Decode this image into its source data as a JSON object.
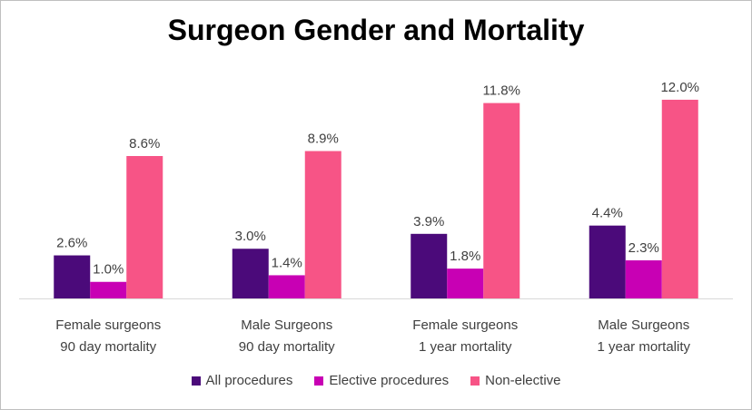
{
  "chart_data": {
    "type": "bar",
    "title": "Surgeon Gender and Mortality",
    "categories": [
      [
        "Female surgeons",
        "90 day mortality"
      ],
      [
        "Male Surgeons",
        "90 day mortality"
      ],
      [
        "Female surgeons",
        "1 year mortality"
      ],
      [
        "Male Surgeons",
        "1 year mortality"
      ]
    ],
    "series": [
      {
        "name": "All procedures",
        "color": "#4b0a7a",
        "values": [
          2.6,
          3.0,
          3.9,
          4.4
        ],
        "labels": [
          "2.6%",
          "3.0%",
          "3.9%",
          "4.4%"
        ]
      },
      {
        "name": "Elective procedures",
        "color": "#c800b4",
        "values": [
          1.0,
          1.4,
          1.8,
          2.3
        ],
        "labels": [
          "1.0%",
          "1.4%",
          "1.8%",
          "2.3%"
        ]
      },
      {
        "name": "Non-elective",
        "color": "#f75486",
        "values": [
          8.6,
          8.9,
          11.8,
          12.0
        ],
        "labels": [
          "8.6%",
          "8.9%",
          "11.8%",
          "12.0%"
        ]
      }
    ],
    "ylim": [
      0,
      12.6
    ],
    "legend": "bottom",
    "grid": false
  }
}
